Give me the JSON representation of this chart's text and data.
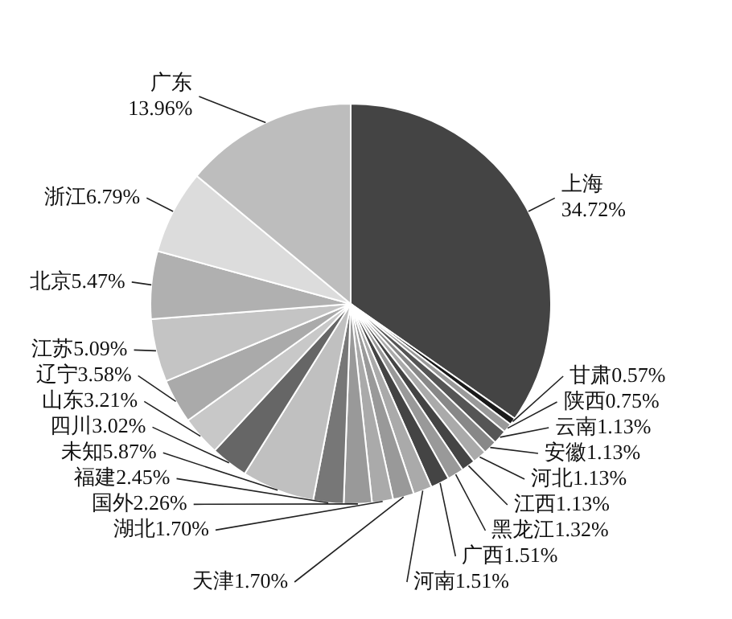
{
  "chart_data": {
    "type": "pie",
    "categories": [
      "上海",
      "甘肃",
      "陕西",
      "云南",
      "安徽",
      "河北",
      "江西",
      "黑龙江",
      "广西",
      "河南",
      "天津",
      "湖北",
      "国外",
      "福建",
      "未知",
      "四川",
      "山东",
      "辽宁",
      "江苏",
      "北京",
      "浙江",
      "广东"
    ],
    "values": [
      34.72,
      0.57,
      0.75,
      1.13,
      1.13,
      1.13,
      1.13,
      1.32,
      1.51,
      1.51,
      1.7,
      1.7,
      2.26,
      2.45,
      5.87,
      3.02,
      3.21,
      3.58,
      5.09,
      5.47,
      6.79,
      13.96
    ],
    "colors": [
      "#444444",
      "#1a1a1a",
      "#999999",
      "#555555",
      "#888888",
      "#aaaaaa",
      "#444444",
      "#999999",
      "#444444",
      "#aaaaaa",
      "#999999",
      "#aaaaaa",
      "#999999",
      "#777777",
      "#c0c0c0",
      "#666666",
      "#c8c8c8",
      "#aaaaaa",
      "#c4c4c4",
      "#b0b0b0",
      "#dcdcdc",
      "#bdbdbd"
    ],
    "value_labels": [
      "34.72%",
      "0.57%",
      "0.75%",
      "1.13%",
      "1.13%",
      "1.13%",
      "1.13%",
      "1.32%",
      "1.51%",
      "1.51%",
      "1.70%",
      "1.70%",
      "2.26%",
      "2.45%",
      "5.87%",
      "3.02%",
      "3.21%",
      "3.58%",
      "5.09%",
      "5.47%",
      "6.79%",
      "13.96%"
    ]
  }
}
